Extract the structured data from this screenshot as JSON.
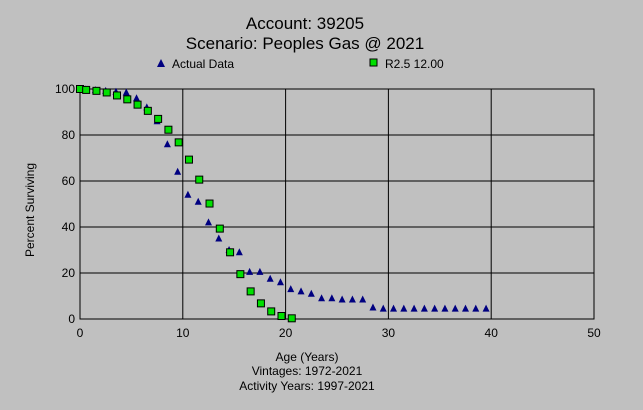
{
  "chart_data": {
    "type": "scatter",
    "title": "Account: 39205",
    "subtitle": "Scenario: Peoples Gas @ 2021",
    "xlabel": "Age (Years)",
    "ylabel": "Percent Surviving",
    "xlim": [
      0,
      50
    ],
    "ylim": [
      0,
      100
    ],
    "x_ticks": [
      0,
      10,
      20,
      30,
      40,
      50
    ],
    "y_ticks": [
      0,
      20,
      40,
      60,
      80,
      100
    ],
    "grid": true,
    "legend_position": "top",
    "footer": [
      "Vintages: 1972-2021",
      "Activity Years: 1997-2021"
    ],
    "series": [
      {
        "name": "Actual Data",
        "marker": "triangle",
        "color": "#000080",
        "points": [
          [
            0,
            100
          ],
          [
            0.5,
            99.8
          ],
          [
            1.5,
            99.5
          ],
          [
            2.5,
            99.2
          ],
          [
            3.5,
            98.8
          ],
          [
            4.5,
            98.5
          ],
          [
            5.5,
            96
          ],
          [
            6.5,
            92
          ],
          [
            7.5,
            86
          ],
          [
            8.5,
            76
          ],
          [
            9.5,
            64
          ],
          [
            10.5,
            54
          ],
          [
            11.5,
            51
          ],
          [
            12.5,
            42
          ],
          [
            13.5,
            35
          ],
          [
            14.5,
            30
          ],
          [
            15.5,
            29
          ],
          [
            16.5,
            20.5
          ],
          [
            17.5,
            20.5
          ],
          [
            18.5,
            17.5
          ],
          [
            19.5,
            16
          ],
          [
            20.5,
            13
          ],
          [
            21.5,
            12
          ],
          [
            22.5,
            11
          ],
          [
            23.5,
            9
          ],
          [
            24.5,
            9
          ],
          [
            25.5,
            8.5
          ],
          [
            26.5,
            8.5
          ],
          [
            27.5,
            8.5
          ],
          [
            28.5,
            5
          ],
          [
            29.5,
            4.5
          ],
          [
            30.5,
            4.5
          ],
          [
            31.5,
            4.5
          ],
          [
            32.5,
            4.5
          ],
          [
            33.5,
            4.5
          ],
          [
            34.5,
            4.5
          ],
          [
            35.5,
            4.5
          ],
          [
            36.5,
            4.5
          ],
          [
            37.5,
            4.5
          ],
          [
            38.5,
            4.5
          ],
          [
            39.5,
            4.5
          ]
        ]
      },
      {
        "name": "R2.5 12.00",
        "marker": "square",
        "color": "#00e000",
        "points": [
          [
            0,
            100
          ],
          [
            0.6,
            99.6
          ],
          [
            1.6,
            99.2
          ],
          [
            2.6,
            98.5
          ],
          [
            3.6,
            97.2
          ],
          [
            4.6,
            95.5
          ],
          [
            5.6,
            93.2
          ],
          [
            6.6,
            90.5
          ],
          [
            7.6,
            87
          ],
          [
            8.6,
            82.3
          ],
          [
            9.6,
            76.8
          ],
          [
            10.6,
            69.3
          ],
          [
            11.6,
            60.6
          ],
          [
            12.6,
            50.2
          ],
          [
            13.6,
            39.3
          ],
          [
            14.6,
            29
          ],
          [
            15.6,
            19.5
          ],
          [
            16.6,
            12
          ],
          [
            17.6,
            6.8
          ],
          [
            18.6,
            3.3
          ],
          [
            19.6,
            1.3
          ],
          [
            20.6,
            0.3
          ]
        ]
      }
    ]
  }
}
